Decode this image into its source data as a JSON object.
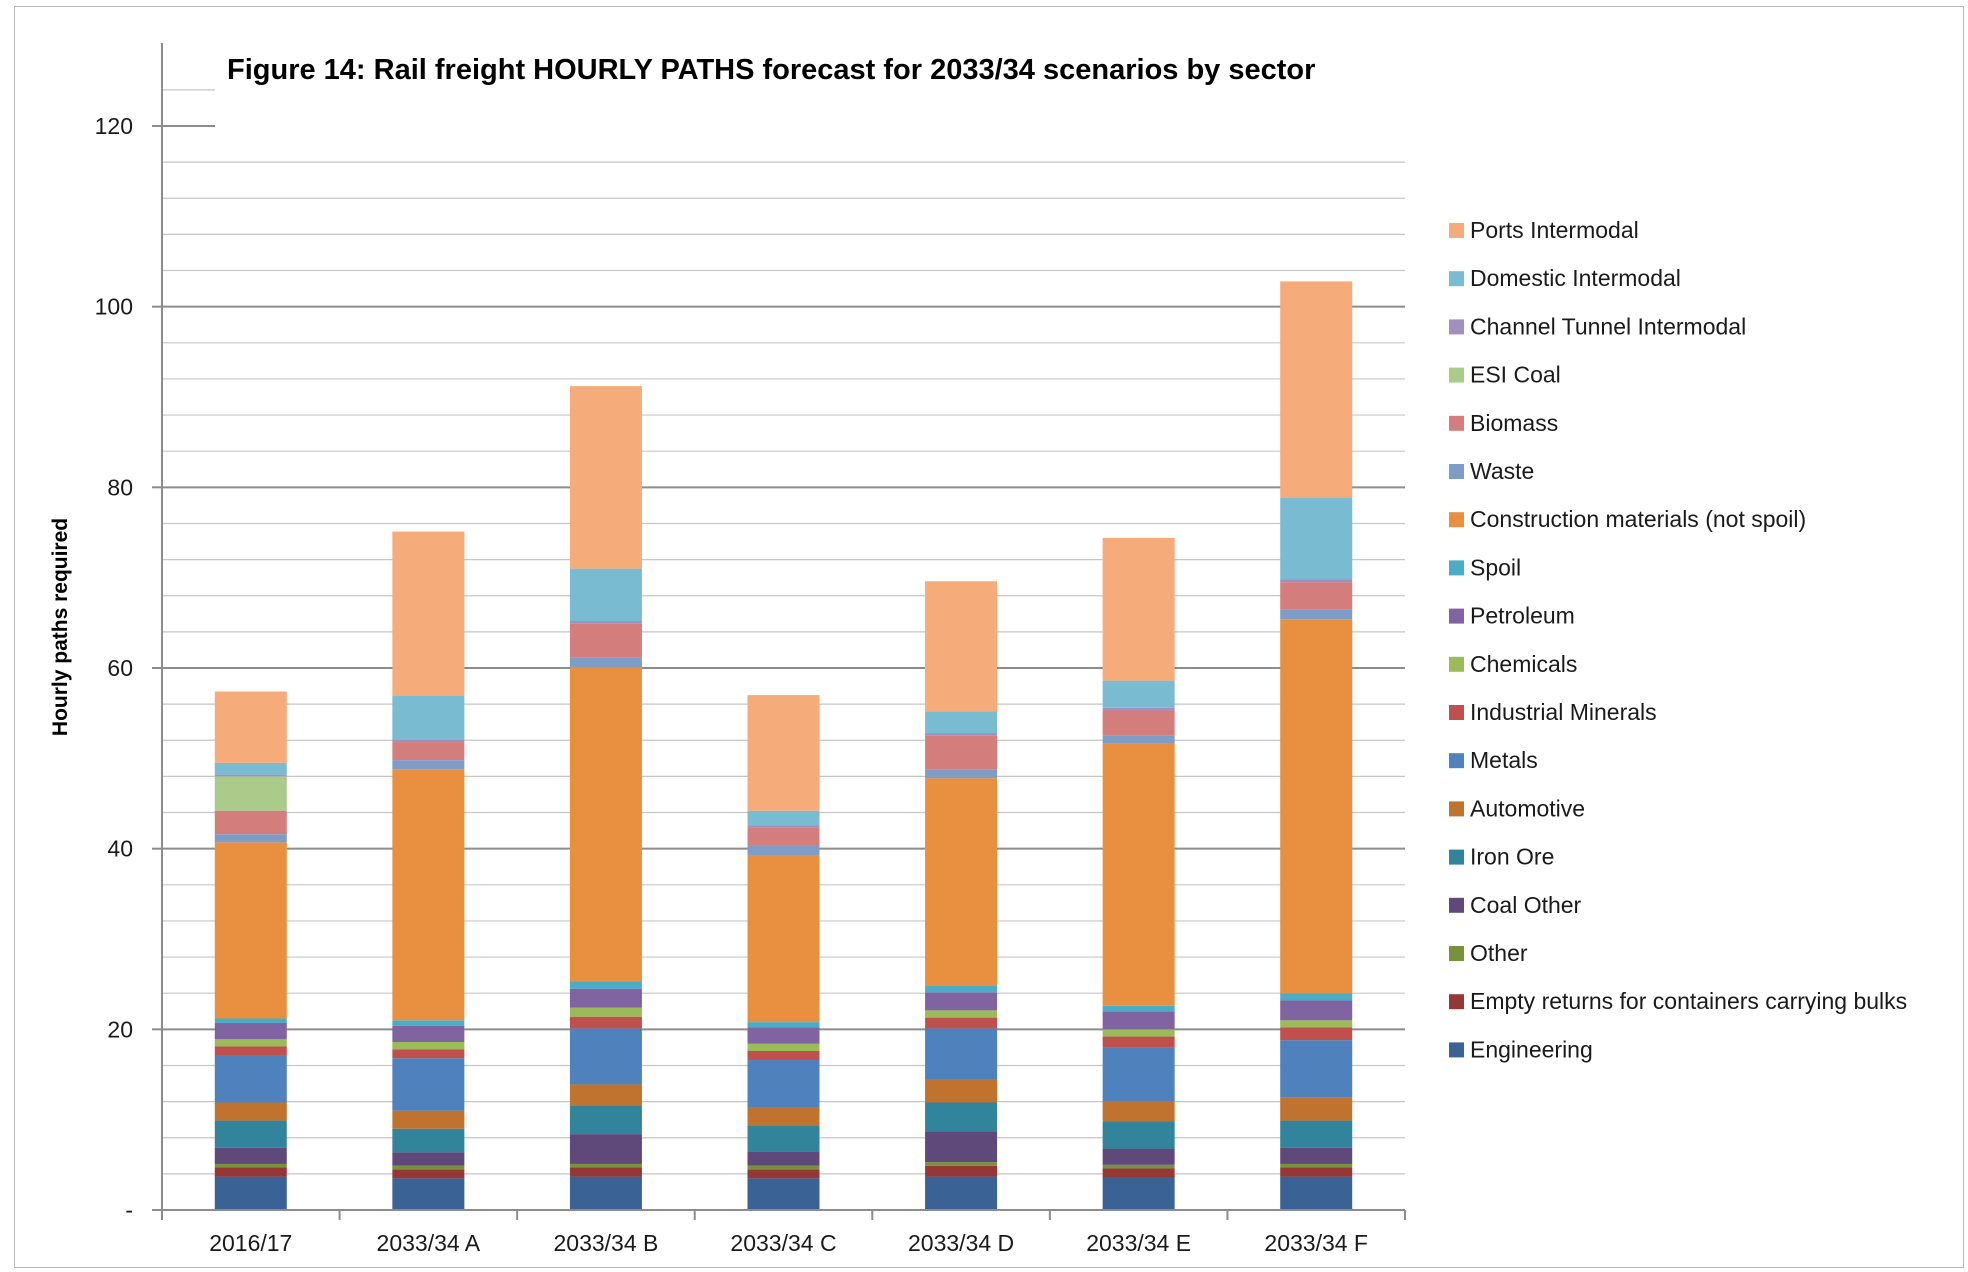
{
  "chart_data": {
    "type": "bar",
    "stacked": true,
    "title": "Figure 14:  Rail freight HOURLY PATHS forecast for 2033/34 scenarios by sector",
    "ylabel": "Hourly paths required",
    "xlabel": "",
    "ylim": [
      0,
      120
    ],
    "yticks": [
      0,
      20,
      40,
      60,
      80,
      100,
      120
    ],
    "ytick_labels": [
      "-",
      "20",
      "40",
      "60",
      "80",
      "100",
      "120"
    ],
    "grid": true,
    "legend_position": "right",
    "categories": [
      "2016/17",
      "2033/34 A",
      "2033/34 B",
      "2033/34 C",
      "2033/34 D",
      "2033/34 E",
      "2033/34 F"
    ],
    "series": [
      {
        "name": "Engineering",
        "color": "#3B6294",
        "values": [
          3.7,
          3.5,
          3.7,
          3.5,
          3.7,
          3.6,
          3.7
        ]
      },
      {
        "name": "Empty returns for containers carrying bulks",
        "color": "#953735",
        "values": [
          1.0,
          1.0,
          1.0,
          1.0,
          1.2,
          1.0,
          1.0
        ]
      },
      {
        "name": "Other",
        "color": "#76923C",
        "values": [
          0.4,
          0.4,
          0.4,
          0.4,
          0.4,
          0.4,
          0.4
        ]
      },
      {
        "name": "Coal Other",
        "color": "#5F497A",
        "values": [
          1.8,
          1.5,
          3.3,
          1.6,
          3.4,
          1.8,
          1.8
        ]
      },
      {
        "name": "Iron Ore",
        "color": "#31849B",
        "values": [
          3.0,
          2.6,
          3.2,
          2.8,
          3.2,
          3.0,
          3.0
        ]
      },
      {
        "name": "Automotive",
        "color": "#C0732F",
        "values": [
          2.0,
          2.0,
          2.3,
          2.1,
          2.5,
          2.2,
          2.6
        ]
      },
      {
        "name": "Metals",
        "color": "#4F81BD",
        "values": [
          5.2,
          5.8,
          6.2,
          5.2,
          5.7,
          6.0,
          6.3
        ]
      },
      {
        "name": "Industrial Minerals",
        "color": "#C0504D",
        "values": [
          1.0,
          1.0,
          1.3,
          1.0,
          1.2,
          1.2,
          1.4
        ]
      },
      {
        "name": "Chemicals",
        "color": "#9BBB59",
        "values": [
          0.8,
          0.8,
          1.0,
          0.8,
          0.8,
          0.8,
          0.8
        ]
      },
      {
        "name": "Petroleum",
        "color": "#8064A2",
        "values": [
          1.8,
          1.8,
          2.1,
          1.8,
          2.0,
          2.0,
          2.2
        ]
      },
      {
        "name": "Spoil",
        "color": "#4BACC6",
        "values": [
          0.5,
          0.6,
          0.8,
          0.6,
          0.7,
          0.6,
          0.8
        ]
      },
      {
        "name": "Construction materials (not spoil)",
        "color": "#E8903F",
        "values": [
          19.5,
          27.8,
          34.8,
          18.5,
          23.0,
          29.0,
          41.4
        ]
      },
      {
        "name": "Waste",
        "color": "#7F9CC7",
        "values": [
          0.9,
          1.0,
          1.1,
          1.0,
          1.0,
          0.9,
          1.1
        ]
      },
      {
        "name": "Biomass",
        "color": "#D47D7D",
        "values": [
          2.6,
          2.0,
          3.7,
          2.0,
          3.7,
          2.8,
          3.0
        ]
      },
      {
        "name": "ESI Coal",
        "color": "#ABCB8B",
        "values": [
          3.8,
          0.0,
          0.0,
          0.0,
          0.0,
          0.0,
          0.0
        ]
      },
      {
        "name": "Channel Tunnel Intermodal",
        "color": "#A28FBE",
        "values": [
          0.2,
          0.3,
          0.3,
          0.3,
          0.3,
          0.3,
          0.3
        ]
      },
      {
        "name": "Domestic Intermodal",
        "color": "#79BCD1",
        "values": [
          1.3,
          4.8,
          5.8,
          1.6,
          2.4,
          3.0,
          9.1
        ]
      },
      {
        "name": "Ports Intermodal",
        "color": "#F5AB7A",
        "values": [
          7.9,
          18.2,
          20.2,
          12.8,
          14.4,
          15.8,
          23.9
        ]
      }
    ]
  }
}
